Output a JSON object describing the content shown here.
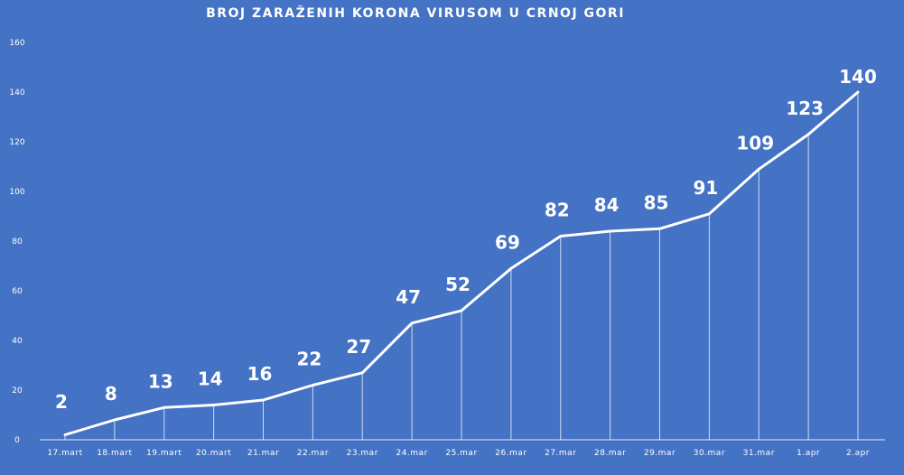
{
  "chart_data": {
    "type": "line",
    "title": "BROJ ZARAŽENIH KORONA VIRUSOM U CRNOJ GORI",
    "xlabel": "",
    "ylabel": "",
    "ylim": [
      0,
      160
    ],
    "yticks": [
      "0",
      "20",
      "40",
      "60",
      "80",
      "100",
      "120",
      "140",
      "160"
    ],
    "grid": false,
    "categories": [
      "17.mart",
      "18.mart",
      "19.mart",
      "20.mart",
      "21.mar",
      "22.mar",
      "23.mar",
      "24.mar",
      "25.mar",
      "26.mar",
      "27.mar",
      "28.mar",
      "29.mar",
      "30.mar",
      "31.mar",
      "1.apr",
      "2.apr"
    ],
    "values": [
      2,
      8,
      13,
      14,
      16,
      22,
      27,
      47,
      52,
      69,
      82,
      84,
      85,
      91,
      109,
      123,
      140
    ],
    "data_labels": [
      "2",
      "8",
      "13",
      "14",
      "16",
      "22",
      "27",
      "47",
      "52",
      "69",
      "82",
      "84",
      "85",
      "91",
      "109",
      "123",
      "140"
    ],
    "colors": {
      "background": "#4472c4",
      "line": "#ffffff",
      "text": "#ffffff"
    }
  }
}
